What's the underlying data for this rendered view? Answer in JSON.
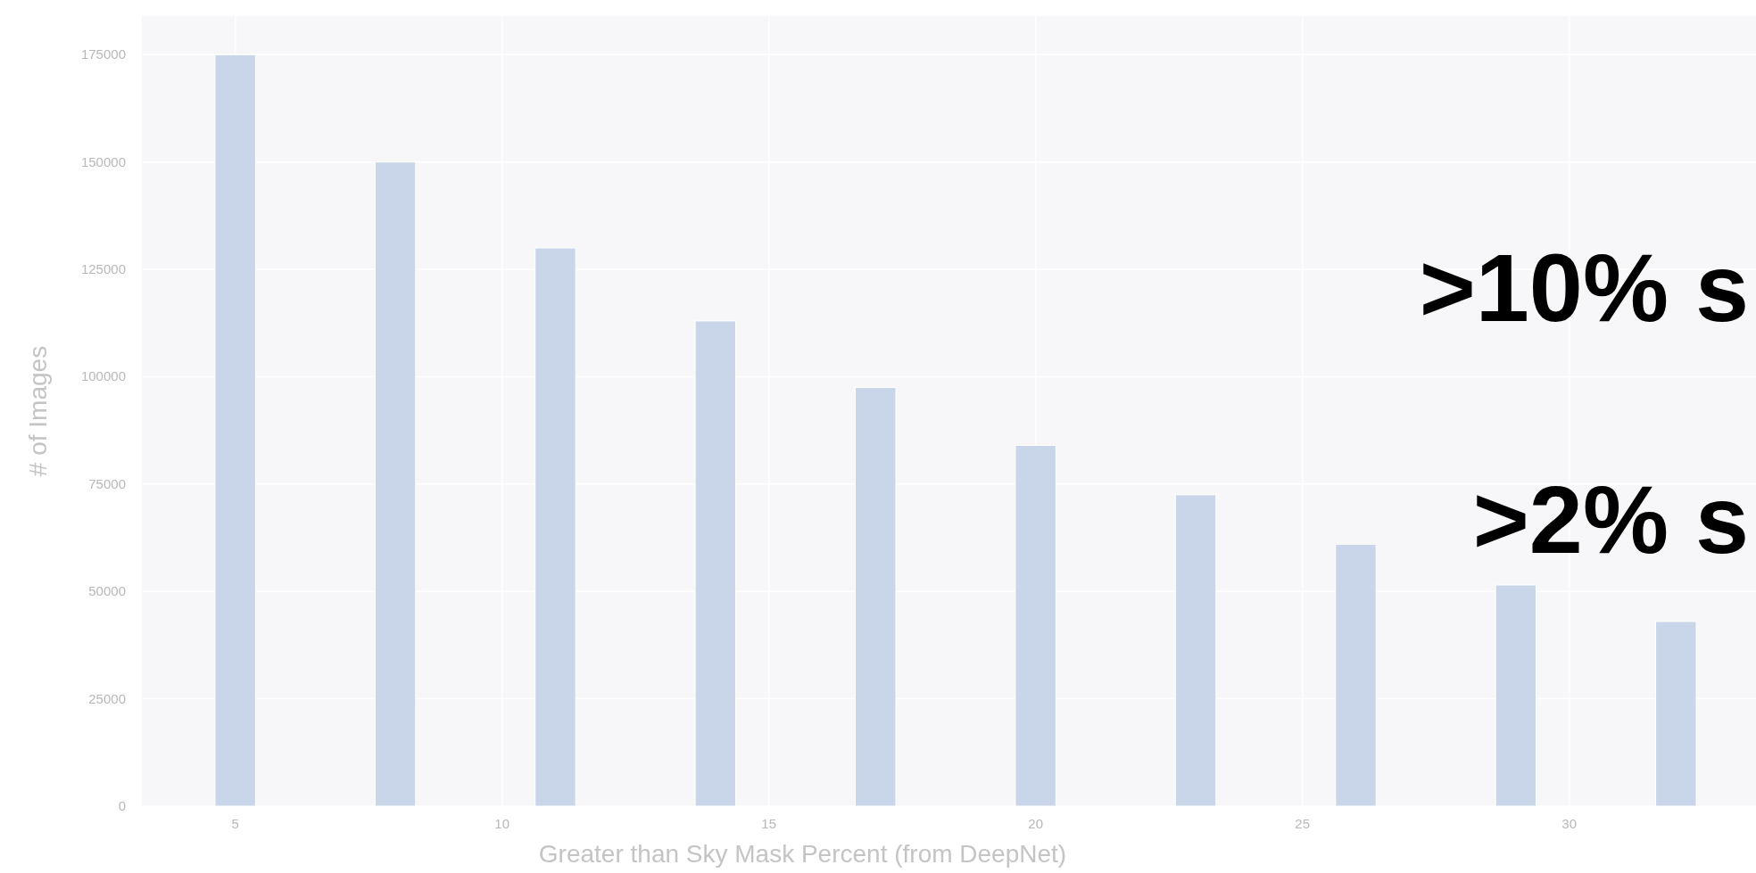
{
  "chart_data": {
    "type": "bar",
    "xlabel": "Greater than Sky Mask Percent (from DeepNet)",
    "ylabel": "# of Images",
    "x": [
      5,
      8,
      11,
      14,
      17,
      20,
      23,
      26,
      29,
      32
    ],
    "values": [
      175000,
      150000,
      130000,
      113000,
      97500,
      84000,
      72500,
      61000,
      51500,
      43000
    ],
    "color": "#c9d5e8",
    "xlim": [
      3.25,
      33.5
    ],
    "xticks": [
      5,
      10,
      15,
      20,
      25,
      30
    ],
    "ylim": [
      0,
      184000
    ],
    "yticks": [
      0,
      25000,
      50000,
      75000,
      100000,
      125000,
      150000,
      175000
    ],
    "grid": true,
    "annotations": [
      ">10% s",
      ">2% s"
    ]
  }
}
